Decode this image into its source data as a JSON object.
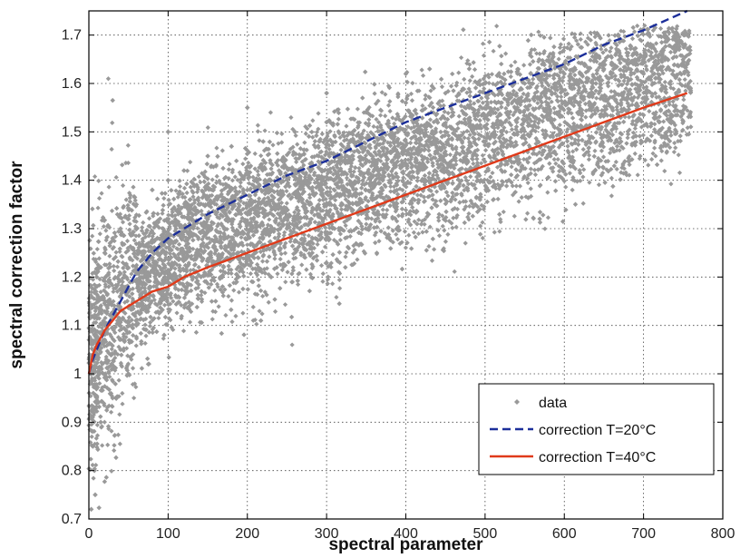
{
  "chart_data": {
    "type": "scatter",
    "title": "",
    "xlabel": "spectral parameter",
    "ylabel": "spectral correction factor",
    "xlim": [
      0,
      800
    ],
    "ylim": [
      0.7,
      1.75
    ],
    "x_ticks": [
      0,
      100,
      200,
      300,
      400,
      500,
      600,
      700,
      800
    ],
    "y_ticks": [
      0.7,
      0.8,
      0.9,
      1,
      1.1,
      1.2,
      1.3,
      1.4,
      1.5,
      1.6,
      1.7
    ],
    "x_tick_labels": [
      "0",
      "100",
      "200",
      "300",
      "400",
      "500",
      "600",
      "700",
      "800"
    ],
    "y_tick_labels": [
      "0.7",
      "0.8",
      "0.9",
      "1",
      "1.1",
      "1.2",
      "1.3",
      "1.4",
      "1.5",
      "1.6",
      "1.7"
    ],
    "grid": true,
    "legend_position": "bottom-right",
    "series": [
      {
        "name": "data",
        "kind": "scatter",
        "color": "#999999",
        "marker": "diamond",
        "x": [
          2,
          5,
          8,
          10,
          15,
          20,
          30,
          40,
          50,
          60,
          80,
          100,
          120,
          150,
          180,
          220,
          260,
          300,
          350,
          400,
          450,
          500,
          550,
          600,
          650,
          700,
          750,
          5,
          10,
          20,
          40,
          60,
          90,
          130,
          170,
          210,
          250,
          320,
          380,
          420,
          12,
          25,
          45,
          70,
          110,
          140,
          200,
          240,
          290,
          340,
          390,
          440,
          480,
          520,
          560,
          620,
          680,
          720,
          740,
          3,
          7,
          15,
          30,
          50,
          75,
          95,
          160,
          230,
          270,
          310,
          360,
          410,
          460,
          500,
          540,
          580,
          640,
          700,
          755,
          100,
          200,
          300,
          400,
          430
        ],
        "y": [
          1.0,
          0.85,
          0.75,
          1.2,
          1.22,
          1.25,
          1.28,
          1.3,
          1.32,
          1.35,
          1.38,
          1.4,
          1.42,
          1.45,
          1.47,
          1.48,
          1.5,
          1.52,
          1.54,
          1.56,
          1.58,
          1.6,
          1.6,
          1.62,
          1.63,
          1.65,
          1.68,
          1.05,
          0.95,
          1.1,
          1.05,
          1.1,
          1.15,
          1.2,
          1.22,
          1.25,
          1.3,
          1.35,
          1.4,
          1.45,
          1.15,
          1.18,
          1.2,
          1.25,
          1.3,
          1.35,
          1.38,
          1.42,
          1.45,
          1.48,
          1.5,
          1.52,
          1.55,
          1.58,
          1.6,
          1.62,
          1.64,
          1.66,
          1.7,
          0.72,
          0.8,
          0.9,
          0.95,
          1.0,
          1.02,
          1.08,
          1.15,
          1.2,
          1.27,
          1.3,
          1.34,
          1.38,
          1.43,
          1.48,
          1.52,
          1.55,
          1.6,
          1.62,
          1.7,
          1.5,
          1.55,
          1.58,
          1.62,
          1.63
        ]
      },
      {
        "name": "correction T=20°C",
        "kind": "line",
        "style": "dashed",
        "color": "#1c2f9a",
        "x": [
          0,
          5,
          10,
          20,
          30,
          40,
          50,
          60,
          80,
          100,
          120,
          150,
          200,
          250,
          300,
          350,
          400,
          450,
          500,
          550,
          600,
          650,
          700,
          755
        ],
        "y": [
          1.0,
          1.03,
          1.05,
          1.09,
          1.12,
          1.15,
          1.18,
          1.21,
          1.25,
          1.28,
          1.3,
          1.33,
          1.37,
          1.41,
          1.44,
          1.48,
          1.52,
          1.55,
          1.58,
          1.61,
          1.64,
          1.68,
          1.71,
          1.75
        ]
      },
      {
        "name": "correction T=40°C",
        "kind": "line",
        "style": "solid",
        "color": "#e03a1a",
        "x": [
          0,
          5,
          10,
          20,
          30,
          40,
          50,
          60,
          80,
          100,
          120,
          150,
          200,
          250,
          300,
          350,
          400,
          450,
          500,
          550,
          600,
          650,
          700,
          755
        ],
        "y": [
          1.0,
          1.04,
          1.06,
          1.09,
          1.11,
          1.13,
          1.14,
          1.15,
          1.17,
          1.18,
          1.2,
          1.22,
          1.25,
          1.28,
          1.31,
          1.34,
          1.37,
          1.4,
          1.43,
          1.46,
          1.49,
          1.52,
          1.55,
          1.58
        ]
      }
    ],
    "legend": [
      {
        "label": "data"
      },
      {
        "label": "correction T=20°C"
      },
      {
        "label": "correction T=40°C"
      }
    ]
  }
}
